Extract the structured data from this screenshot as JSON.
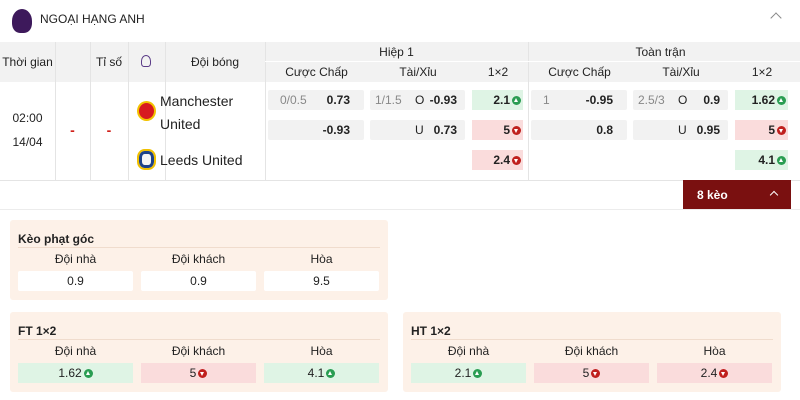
{
  "header": {
    "title": "NGOẠI HẠNG ANH"
  },
  "columns": {
    "time": "Thời gian",
    "score": "Tỉ số",
    "team": "Đội bóng"
  },
  "groups": [
    {
      "title": "Hiệp 1",
      "cols": [
        "Cược Chấp",
        "Tài/Xỉu",
        "1×2"
      ]
    },
    {
      "title": "Toàn trận",
      "cols": [
        "Cược Chấp",
        "Tài/Xỉu",
        "1×2"
      ]
    }
  ],
  "match": {
    "time": "02:00",
    "date": "14/04",
    "score": [
      "-",
      "-"
    ],
    "teams": [
      "Manchester United",
      "Leeds United"
    ],
    "odds": [
      {
        "handicap": [
          {
            "line": "0/0.5",
            "odds": 0.73
          },
          {
            "odds": -0.93
          }
        ],
        "overunder": [
          {
            "line": "1/1.5",
            "side": "O",
            "odds": -0.93
          },
          {
            "side": "U",
            "odds": 0.73
          }
        ],
        "x12": {
          "values": [
            2.1,
            5,
            2.4
          ],
          "trend": [
            "up",
            "down",
            "down"
          ]
        }
      },
      {
        "handicap": [
          {
            "line": "1",
            "odds": -0.95
          },
          {
            "odds": 0.8
          }
        ],
        "overunder": [
          {
            "line": "2.5/3",
            "side": "O",
            "odds": 0.9
          },
          {
            "side": "U",
            "odds": 0.95
          }
        ],
        "x12": {
          "values": [
            1.62,
            5,
            4.1
          ],
          "trend": [
            "up",
            "down",
            "up"
          ]
        }
      }
    ]
  },
  "more_button": "8 kèo",
  "panels": [
    {
      "title": "Kèo phạt góc",
      "labels": [
        "Đội nhà",
        "Đội khách",
        "Hòa"
      ],
      "values": [
        0.9,
        0.9,
        9.5
      ]
    },
    {
      "title": "FT 1×2",
      "labels": [
        "Đội nhà",
        "Đội khách",
        "Hòa"
      ],
      "values": [
        1.62,
        5,
        4.1
      ],
      "trend": [
        "up",
        "down",
        "up"
      ]
    },
    {
      "title": "HT 1×2",
      "labels": [
        "Đội nhà",
        "Đội khách",
        "Hòa"
      ],
      "values": [
        2.1,
        5,
        2.4
      ],
      "trend": [
        "up",
        "down",
        "down"
      ]
    }
  ]
}
